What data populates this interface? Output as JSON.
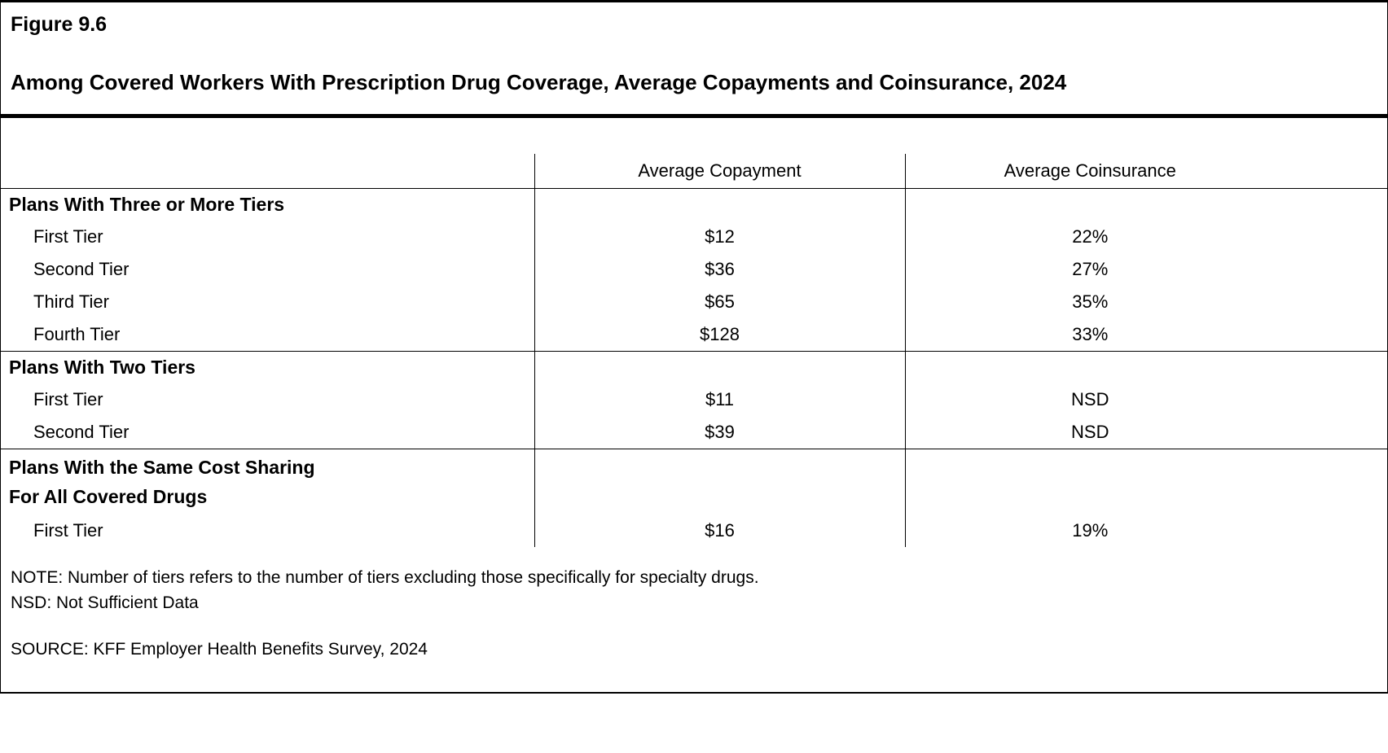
{
  "figure": {
    "label": "Figure 9.6",
    "title": "Among Covered Workers With Prescription Drug Coverage, Average Copayments and Coinsurance, 2024"
  },
  "table": {
    "columns": [
      "",
      "Average Copayment",
      "Average Coinsurance"
    ],
    "sections": [
      {
        "header": "Plans With Three or More Tiers",
        "rows": [
          {
            "label": "First Tier",
            "copayment": "$12",
            "coinsurance": "22%"
          },
          {
            "label": "Second Tier",
            "copayment": "$36",
            "coinsurance": "27%"
          },
          {
            "label": "Third Tier",
            "copayment": "$65",
            "coinsurance": "35%"
          },
          {
            "label": "Fourth Tier",
            "copayment": "$128",
            "coinsurance": "33%"
          }
        ]
      },
      {
        "header": "Plans With Two Tiers",
        "rows": [
          {
            "label": "First Tier",
            "copayment": "$11",
            "coinsurance": "NSD"
          },
          {
            "label": "Second Tier",
            "copayment": "$39",
            "coinsurance": "NSD"
          }
        ]
      },
      {
        "header": "Plans With the Same Cost Sharing\nFor All Covered Drugs",
        "rows": [
          {
            "label": "First Tier",
            "copayment": "$16",
            "coinsurance": "19%"
          }
        ]
      }
    ]
  },
  "notes": {
    "note": "NOTE: Number of tiers refers to the number of tiers excluding those specifically for specialty drugs.",
    "nsd": "NSD: Not Sufficient Data",
    "source": "SOURCE: KFF Employer Health Benefits Survey, 2024"
  }
}
